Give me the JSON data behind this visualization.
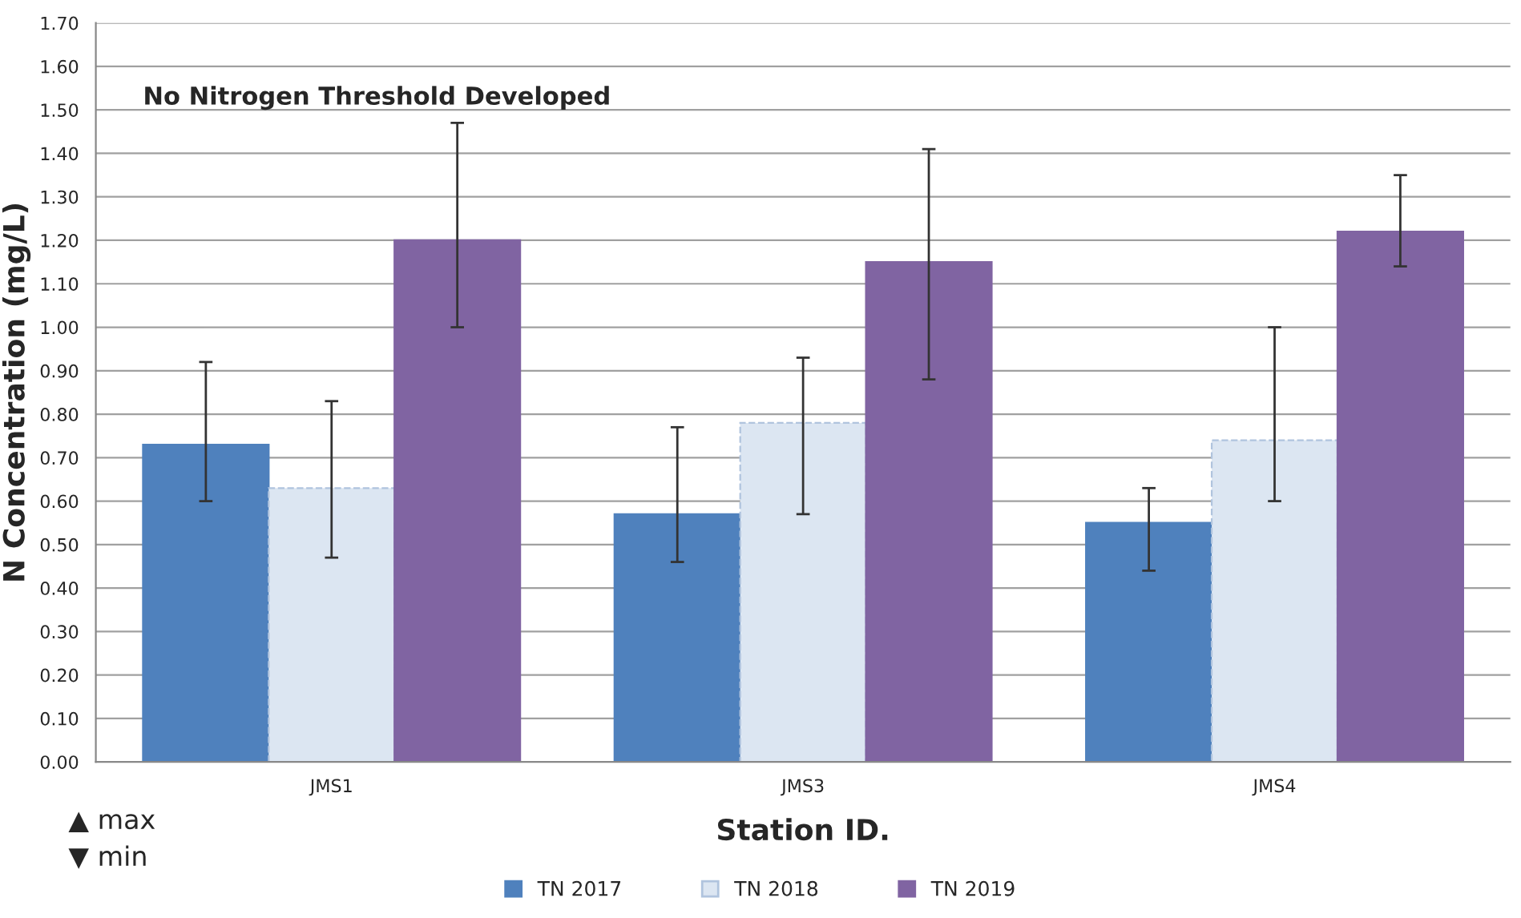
{
  "chart_data": {
    "type": "bar",
    "xlabel": "Station ID.",
    "ylabel": "N Concentration (mg/L)",
    "categories": [
      "JMS1",
      "JMS3",
      "JMS4"
    ],
    "series": [
      {
        "name": "TN 2017",
        "color": "#4f81bd",
        "values": [
          0.73,
          0.57,
          0.55
        ],
        "errors": [
          [
            0.6,
            0.92
          ],
          [
            0.46,
            0.77
          ],
          [
            0.44,
            0.63
          ]
        ]
      },
      {
        "name": "TN 2018",
        "color": "#dce6f2",
        "values": [
          0.63,
          0.78,
          0.74
        ],
        "errors": [
          [
            0.47,
            0.83
          ],
          [
            0.57,
            0.93
          ],
          [
            0.6,
            1.0
          ]
        ]
      },
      {
        "name": "TN 2019",
        "color": "#8064a2",
        "values": [
          1.2,
          1.15,
          1.22
        ],
        "errors": [
          [
            1.0,
            1.47
          ],
          [
            0.88,
            1.41
          ],
          [
            1.14,
            1.35
          ]
        ]
      }
    ],
    "ylim": [
      0,
      1.7
    ],
    "yticks": [
      {
        "value": 0,
        "label": "0.00"
      },
      {
        "value": 0.1,
        "label": "0.10"
      },
      {
        "value": 0.2,
        "label": "0.20"
      },
      {
        "value": 0.3,
        "label": "0.30"
      },
      {
        "value": 0.4,
        "label": "0.40"
      },
      {
        "value": 0.5,
        "label": "0.50"
      },
      {
        "value": 0.6,
        "label": "0.60"
      },
      {
        "value": 0.7,
        "label": "0.70"
      },
      {
        "value": 0.8,
        "label": "0.80"
      },
      {
        "value": 0.9,
        "label": "0.90"
      },
      {
        "value": 1.0,
        "label": "1.00"
      },
      {
        "value": 1.1,
        "label": "1.10"
      },
      {
        "value": 1.2,
        "label": "1.20"
      },
      {
        "value": 1.3,
        "label": "1.30"
      },
      {
        "value": 1.4,
        "label": "1.40"
      },
      {
        "value": 1.5,
        "label": "1.50"
      },
      {
        "value": 1.6,
        "label": "1.60"
      },
      {
        "value": 1.7,
        "label": "1.70"
      }
    ],
    "annotations": [
      "No Nitrogen Threshold Developed",
      "▲ max",
      "▼ min"
    ],
    "grid": "y",
    "legend": "bottom"
  }
}
